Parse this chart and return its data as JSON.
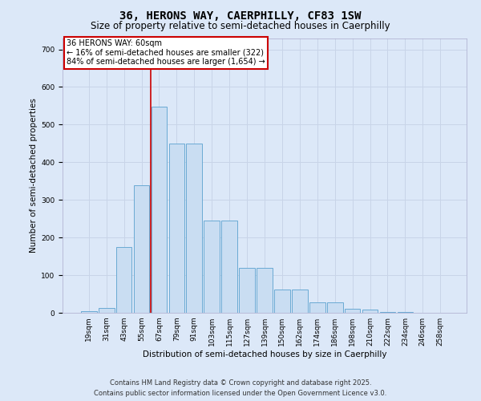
{
  "title": "36, HERONS WAY, CAERPHILLY, CF83 1SW",
  "subtitle": "Size of property relative to semi-detached houses in Caerphilly",
  "xlabel": "Distribution of semi-detached houses by size in Caerphilly",
  "ylabel": "Number of semi-detached properties",
  "categories": [
    "19sqm",
    "31sqm",
    "43sqm",
    "55sqm",
    "67sqm",
    "79sqm",
    "91sqm",
    "103sqm",
    "115sqm",
    "127sqm",
    "139sqm",
    "150sqm",
    "162sqm",
    "174sqm",
    "186sqm",
    "198sqm",
    "210sqm",
    "222sqm",
    "234sqm",
    "246sqm",
    "258sqm"
  ],
  "bar_heights": [
    5,
    12,
    175,
    338,
    548,
    450,
    450,
    245,
    245,
    120,
    120,
    62,
    62,
    27,
    27,
    10,
    8,
    3,
    2,
    1,
    0
  ],
  "bar_color": "#c9ddf2",
  "bar_edge_color": "#6aaad4",
  "property_label": "36 HERONS WAY: 60sqm",
  "annotation_line1": "← 16% of semi-detached houses are smaller (322)",
  "annotation_line2": "84% of semi-detached houses are larger (1,654) →",
  "annotation_box_color": "#ffffff",
  "annotation_box_edge": "#cc0000",
  "vline_color": "#cc0000",
  "vline_x": 3.5,
  "ylim": [
    0,
    730
  ],
  "yticks": [
    0,
    100,
    200,
    300,
    400,
    500,
    600,
    700
  ],
  "grid_color": "#c8d4e8",
  "background_color": "#dce8f8",
  "plot_bg_color": "#dce8f8",
  "footer_line1": "Contains HM Land Registry data © Crown copyright and database right 2025.",
  "footer_line2": "Contains public sector information licensed under the Open Government Licence v3.0.",
  "title_fontsize": 10,
  "subtitle_fontsize": 8.5,
  "axis_label_fontsize": 7.5,
  "tick_fontsize": 6.5,
  "annotation_fontsize": 7,
  "footer_fontsize": 6
}
